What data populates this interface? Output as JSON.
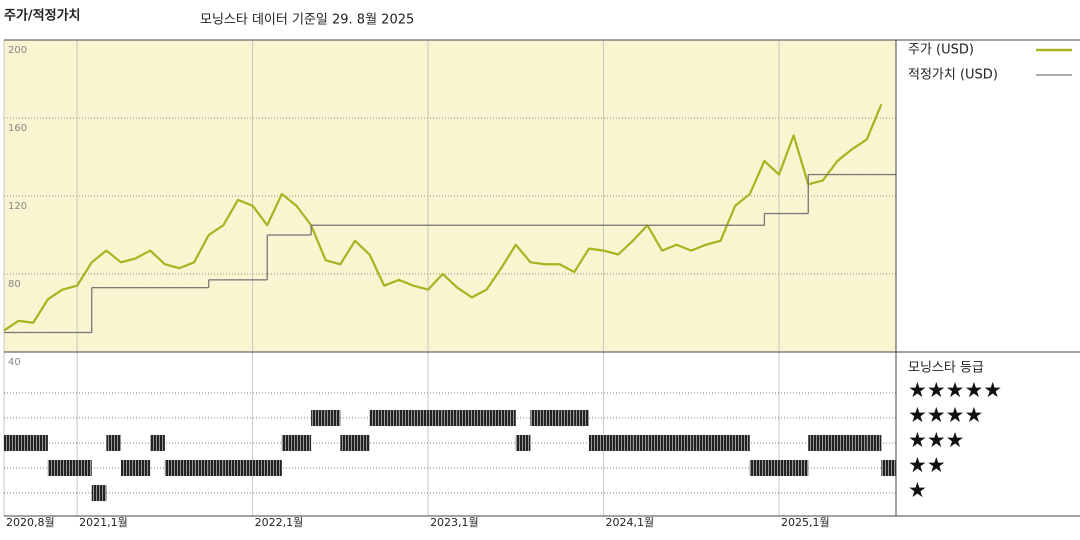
{
  "chart_data": [
    {
      "type": "line",
      "title": "주가/적정가치",
      "subtitle": "모닝스타 데이터 기준일 29. 8월 2025",
      "x": [
        "2020-08",
        "2020-09",
        "2020-10",
        "2020-11",
        "2020-12",
        "2021-01",
        "2021-02",
        "2021-03",
        "2021-04",
        "2021-05",
        "2021-06",
        "2021-07",
        "2021-08",
        "2021-09",
        "2021-10",
        "2021-11",
        "2021-12",
        "2022-01",
        "2022-02",
        "2022-03",
        "2022-04",
        "2022-05",
        "2022-06",
        "2022-07",
        "2022-08",
        "2022-09",
        "2022-10",
        "2022-11",
        "2022-12",
        "2023-01",
        "2023-02",
        "2023-03",
        "2023-04",
        "2023-05",
        "2023-06",
        "2023-07",
        "2023-08",
        "2023-09",
        "2023-10",
        "2023-11",
        "2023-12",
        "2024-01",
        "2024-02",
        "2024-03",
        "2024-04",
        "2024-05",
        "2024-06",
        "2024-07",
        "2024-08",
        "2024-09",
        "2024-10",
        "2024-11",
        "2024-12",
        "2025-01",
        "2025-02",
        "2025-03",
        "2025-04",
        "2025-05",
        "2025-06",
        "2025-07",
        "2025-08"
      ],
      "series": [
        {
          "name": "주가 (USD)",
          "color": "#a8b320",
          "style": "line",
          "values": [
            51,
            56,
            55,
            67,
            72,
            74,
            86,
            92,
            86,
            88,
            92,
            85,
            83,
            86,
            100,
            105,
            118,
            115,
            105,
            121,
            115,
            105,
            87,
            85,
            97,
            90,
            74,
            77,
            74,
            72,
            80,
            73,
            68,
            72,
            83,
            95,
            86,
            85,
            85,
            81,
            93,
            92,
            90,
            97,
            105,
            92,
            95,
            92,
            95,
            97,
            115,
            121,
            138,
            131,
            151,
            126,
            128,
            138,
            144,
            149,
            167
          ]
        },
        {
          "name": "적정가치 (USD)",
          "color": "#777777",
          "style": "step",
          "values": [
            50,
            50,
            50,
            50,
            50,
            50,
            73,
            73,
            73,
            73,
            73,
            73,
            73,
            73,
            77,
            77,
            77,
            77,
            100,
            100,
            100,
            105,
            105,
            105,
            105,
            105,
            105,
            105,
            105,
            105,
            105,
            105,
            105,
            105,
            105,
            105,
            105,
            105,
            105,
            105,
            105,
            105,
            105,
            105,
            105,
            105,
            105,
            105,
            105,
            105,
            105,
            105,
            111,
            111,
            111,
            131,
            131,
            131,
            131,
            131,
            131
          ]
        }
      ],
      "xlim": [
        "2020-08",
        "2025-09"
      ],
      "xticks": [
        {
          "value": "2020-08",
          "label": "2020,8월"
        },
        {
          "value": "2021-01",
          "label": "2021,1월"
        },
        {
          "value": "2022-01",
          "label": "2022,1월"
        },
        {
          "value": "2023-01",
          "label": "2023,1월"
        },
        {
          "value": "2024-01",
          "label": "2024,1월"
        },
        {
          "value": "2025-01",
          "label": "2025,1월"
        }
      ],
      "ylim": [
        40,
        200
      ],
      "yticks": [
        40,
        80,
        120,
        160,
        200
      ],
      "background": "#f8f5d0"
    },
    {
      "type": "strip",
      "title": "모닝스타 등급",
      "values": [
        3,
        3,
        3,
        2,
        2,
        2,
        1,
        3,
        2,
        2,
        3,
        2,
        2,
        2,
        2,
        2,
        2,
        2,
        2,
        3,
        3,
        4,
        4,
        3,
        3,
        4,
        4,
        4,
        4,
        4,
        4,
        4,
        4,
        4,
        4,
        3,
        4,
        4,
        4,
        4,
        3,
        3,
        3,
        3,
        3,
        3,
        3,
        3,
        3,
        3,
        3,
        2,
        2,
        2,
        2,
        3,
        3,
        3,
        3,
        3,
        2
      ],
      "ylim": [
        0.5,
        5.5
      ],
      "yticks": [
        {
          "value": 5,
          "label": "★★★★★"
        },
        {
          "value": 4,
          "label": "★★★★"
        },
        {
          "value": 3,
          "label": "★★★"
        },
        {
          "value": 2,
          "label": "★★"
        },
        {
          "value": 1,
          "label": "★"
        }
      ],
      "color": "#222222"
    }
  ]
}
